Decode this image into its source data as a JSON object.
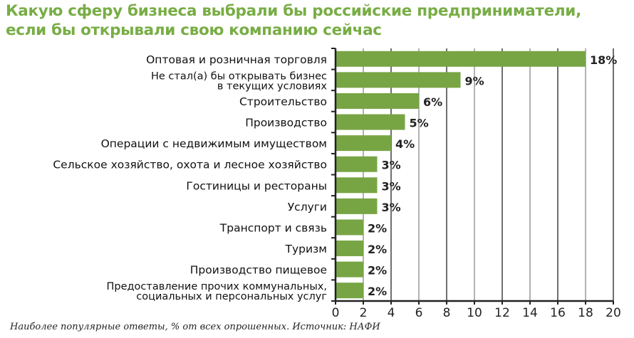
{
  "chart_data": {
    "type": "bar",
    "title_lines": [
      "Какую сферу бизнеса выбрали бы российские предприниматели,",
      "если бы открывали свою компанию сейчас"
    ],
    "categories": [
      [
        "Оптовая и розничная торговля"
      ],
      [
        "Не стал(а) бы открывать бизнес",
        "в текущих условиях"
      ],
      [
        "Строительство"
      ],
      [
        "Производство"
      ],
      [
        "Операции с недвижимым имуществом"
      ],
      [
        "Сельское хозяйство, охота и лесное хозяйство"
      ],
      [
        "Гостиницы и рестораны"
      ],
      [
        "Услуги"
      ],
      [
        "Транспорт и связь"
      ],
      [
        "Туризм"
      ],
      [
        "Производство пищевое"
      ],
      [
        "Предоставление прочих коммунальных,",
        "социальных и персональных услуг"
      ]
    ],
    "values": [
      18,
      9,
      6,
      5,
      4,
      3,
      3,
      3,
      2,
      2,
      2,
      2
    ],
    "value_labels": [
      "18%",
      "9%",
      "6%",
      "5%",
      "4%",
      "3%",
      "3%",
      "3%",
      "2%",
      "2%",
      "2%",
      "2%"
    ],
    "xlim": [
      0,
      20
    ],
    "xticks": [
      "0",
      "2",
      "4",
      "6",
      "8",
      "10",
      "12",
      "14",
      "16",
      "18",
      "20"
    ],
    "grid": true,
    "bar_color": "#78a544",
    "note": "Наиболее популярные ответы, % от всех опрошенных. Источник: НАФИ"
  }
}
